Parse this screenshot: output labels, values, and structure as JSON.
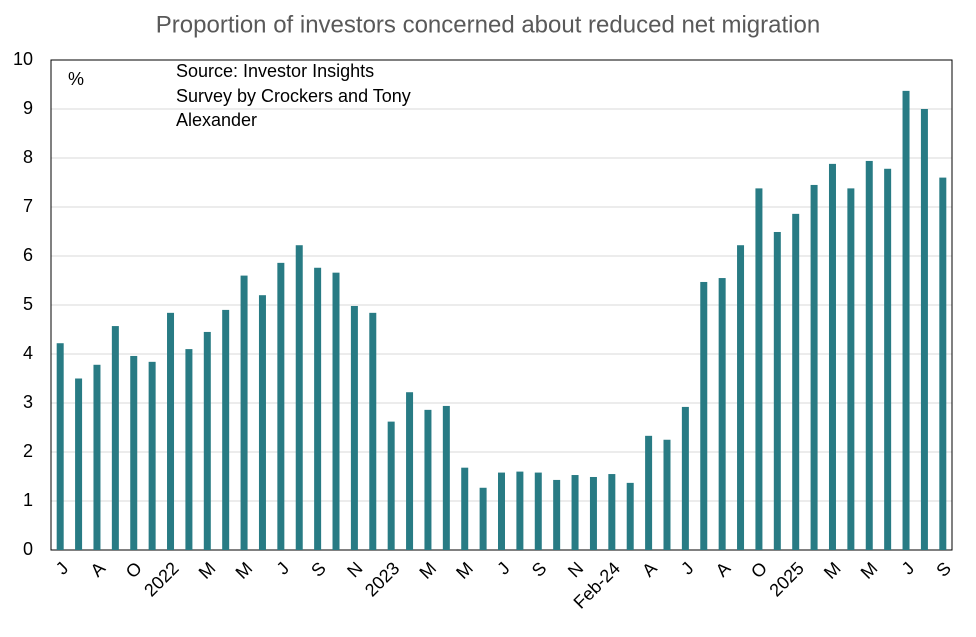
{
  "chart_data": {
    "type": "bar",
    "title": "Proportion of investors concerned about reduced net migration",
    "annotations": [
      "%",
      "Source: Investor Insights",
      "Survey by Crockers and Tony",
      "Alexander"
    ],
    "categories": [
      "J",
      null,
      "A",
      null,
      "O",
      null,
      "2022",
      null,
      "M",
      null,
      "M",
      null,
      "J",
      null,
      "S",
      null,
      "N",
      null,
      "2023",
      null,
      "M",
      null,
      "M",
      null,
      "J",
      null,
      "S",
      null,
      "N",
      null,
      "Feb-24",
      null,
      "A",
      null,
      "J",
      null,
      "A",
      null,
      "O",
      null,
      "2025",
      null,
      "M",
      null,
      "M",
      null,
      "J",
      null,
      "S"
    ],
    "values": [
      4.22,
      3.5,
      3.78,
      4.57,
      3.96,
      3.84,
      4.84,
      4.1,
      4.45,
      4.9,
      5.6,
      5.2,
      5.86,
      6.22,
      5.76,
      5.66,
      4.98,
      4.84,
      2.62,
      3.22,
      2.86,
      2.94,
      1.68,
      1.27,
      1.58,
      1.6,
      1.58,
      1.43,
      1.53,
      1.49,
      1.55,
      1.37,
      2.33,
      2.25,
      2.92,
      5.47,
      5.55,
      6.22,
      7.38,
      6.49,
      6.86,
      7.45,
      7.88,
      7.38,
      7.94,
      7.78,
      9.37,
      9.0,
      7.6
    ],
    "color": "#287b84",
    "ylim": [
      0,
      10
    ],
    "yticks": [
      0,
      1,
      2,
      3,
      4,
      5,
      6,
      7,
      8,
      9,
      10
    ],
    "grid": true
  }
}
